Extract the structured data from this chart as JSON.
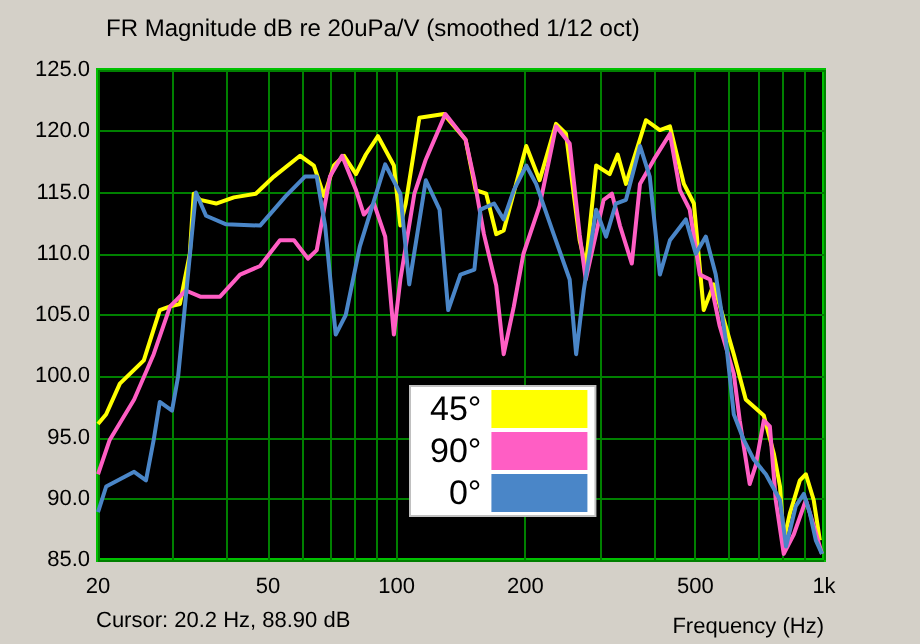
{
  "chart_data": {
    "type": "line",
    "title": "FR Magnitude dB re 20uPa/V (smoothed 1/12 oct)",
    "xlabel": "Frequency (Hz)",
    "annotations": [
      "Cursor: 20.2 Hz, 88.90 dB"
    ],
    "log": "x",
    "grid": true,
    "legend": "bottom",
    "marker": "none",
    "line_style": "solid",
    "xlim": [
      20,
      1000
    ],
    "xticks": [
      20,
      {
        "value": 30,
        "label": null
      },
      {
        "value": 40,
        "label": null
      },
      50,
      {
        "value": 60,
        "label": null
      },
      {
        "value": 70,
        "label": null
      },
      {
        "value": 80,
        "label": null
      },
      {
        "value": 90,
        "label": null
      },
      100,
      200,
      {
        "value": 300,
        "label": null
      },
      {
        "value": 400,
        "label": null
      },
      500,
      {
        "value": 600,
        "label": null
      },
      {
        "value": 700,
        "label": null
      },
      {
        "value": 800,
        "label": null
      },
      {
        "value": 900,
        "label": null
      },
      {
        "value": 1000,
        "label": "1k"
      }
    ],
    "ylim": [
      85,
      125
    ],
    "yticks": [
      {
        "value": 85,
        "label": "85.0"
      },
      {
        "value": 90,
        "label": "90.0"
      },
      {
        "value": 95,
        "label": "95.0"
      },
      {
        "value": 100,
        "label": "100.0"
      },
      {
        "value": 105,
        "label": "105.0"
      },
      {
        "value": 110,
        "label": "110.0"
      },
      {
        "value": 115,
        "label": "115.0"
      },
      {
        "value": 120,
        "label": "120.0"
      },
      {
        "value": 125,
        "label": "125.0"
      }
    ],
    "series": [
      {
        "name": "45°",
        "color": "#ffff00",
        "x": [
          20,
          20.9,
          22.5,
          25.6,
          27.9,
          29.5,
          31.1,
          32.8,
          33.5,
          34.7,
          37.8,
          41.6,
          46.8,
          51.6,
          59.4,
          64,
          67.6,
          71.3,
          75.3,
          80.3,
          84.7,
          90.4,
          98.5,
          102,
          105,
          113,
          129,
          145,
          153,
          162,
          171,
          178,
          201,
          216,
          236,
          249,
          268,
          277,
          293,
          315,
          329,
          344,
          383,
          413,
          436,
          470,
          496,
          523,
          552,
          583,
          615,
          656,
          723,
          763,
          789,
          805,
          832,
          878,
          907,
          946,
          978
        ],
        "values": [
          96.1,
          96.9,
          99.4,
          101.3,
          105.4,
          105.7,
          105.9,
          110,
          114.9,
          114.4,
          114.1,
          114.6,
          114.9,
          116.3,
          118,
          117.2,
          114.7,
          117.2,
          118,
          116.5,
          118.1,
          119.6,
          117.2,
          112.3,
          114.1,
          121.1,
          121.4,
          119.3,
          115.2,
          114.9,
          111.6,
          111.9,
          118.8,
          116,
          120.6,
          119.8,
          111.1,
          109,
          117.2,
          116.5,
          118.1,
          115.7,
          120.9,
          120.1,
          120.4,
          115.7,
          114.1,
          105.4,
          107.5,
          104.6,
          101.8,
          98.1,
          96.8,
          93.7,
          91,
          86.6,
          88.8,
          91.5,
          92,
          89.9,
          86.6
        ]
      },
      {
        "name": "90°",
        "color": "#ff5ec4",
        "x": [
          20,
          21.3,
          24.3,
          27,
          29.5,
          32.1,
          34.7,
          38.6,
          43,
          47.9,
          53.3,
          57.5,
          62,
          65,
          69.8,
          74.5,
          80.3,
          83.8,
          88.5,
          94,
          98.5,
          102,
          110,
          117,
          130,
          145,
          152,
          160,
          171,
          178,
          188,
          198,
          216,
          236,
          254,
          268,
          277,
          305,
          319,
          333,
          355,
          371,
          400,
          436,
          460,
          485,
          512,
          541,
          570,
          615,
          635,
          670,
          692,
          723,
          747,
          771,
          805,
          850,
          907,
          946,
          989
        ],
        "values": [
          92,
          94.8,
          98.1,
          101.8,
          105.7,
          107,
          106.5,
          106.5,
          108.3,
          109,
          111.1,
          111.1,
          109.6,
          110.3,
          116.3,
          118,
          115.2,
          113.2,
          114.1,
          111.4,
          103.4,
          107.9,
          114.9,
          117.7,
          121.4,
          119.3,
          116,
          111.6,
          107.4,
          101.8,
          105.7,
          110,
          113.9,
          120.4,
          119,
          111.6,
          107.9,
          114.4,
          114.9,
          112.3,
          109.2,
          115.7,
          117.7,
          119.8,
          115.2,
          113.6,
          108.3,
          107.9,
          104.1,
          100.2,
          96.4,
          91.2,
          92.7,
          96.4,
          95.9,
          89.9,
          85.5,
          87.1,
          89.9,
          87.8,
          85.5
        ]
      },
      {
        "name": "0°",
        "color": "#4a86c8",
        "x": [
          20,
          20.9,
          24.3,
          25.9,
          27,
          27.9,
          29.8,
          30.8,
          33.9,
          35.8,
          39.9,
          47.9,
          55,
          61,
          65,
          68,
          72,
          76,
          82,
          94,
          102,
          107,
          117,
          126,
          132,
          141,
          152,
          157,
          169,
          178,
          188,
          201,
          212,
          233,
          254,
          263,
          274,
          293,
          309,
          326,
          344,
          371,
          391,
          413,
          436,
          475,
          501,
          529,
          558,
          589,
          615,
          649,
          685,
          731,
          789,
          815,
          859,
          897,
          927,
          957,
          989
        ],
        "values": [
          88.9,
          91,
          92.2,
          91.5,
          94.8,
          97.9,
          97.2,
          100,
          115,
          113.1,
          112.4,
          112.3,
          114.7,
          116.3,
          116.3,
          112.3,
          103.4,
          105,
          110.6,
          117.3,
          114.9,
          107.5,
          116,
          113.6,
          105.4,
          108.3,
          108.7,
          113.6,
          114.1,
          112.8,
          115.2,
          117.2,
          115.7,
          111.6,
          107.9,
          101.8,
          107,
          113.6,
          111.4,
          114.1,
          114.4,
          118.8,
          116.3,
          108.3,
          111.1,
          112.8,
          110,
          111.4,
          108.3,
          103,
          96.9,
          94.8,
          93.2,
          92,
          89.9,
          86.1,
          89.4,
          90.4,
          88.8,
          86.6,
          85.5
        ]
      }
    ]
  }
}
